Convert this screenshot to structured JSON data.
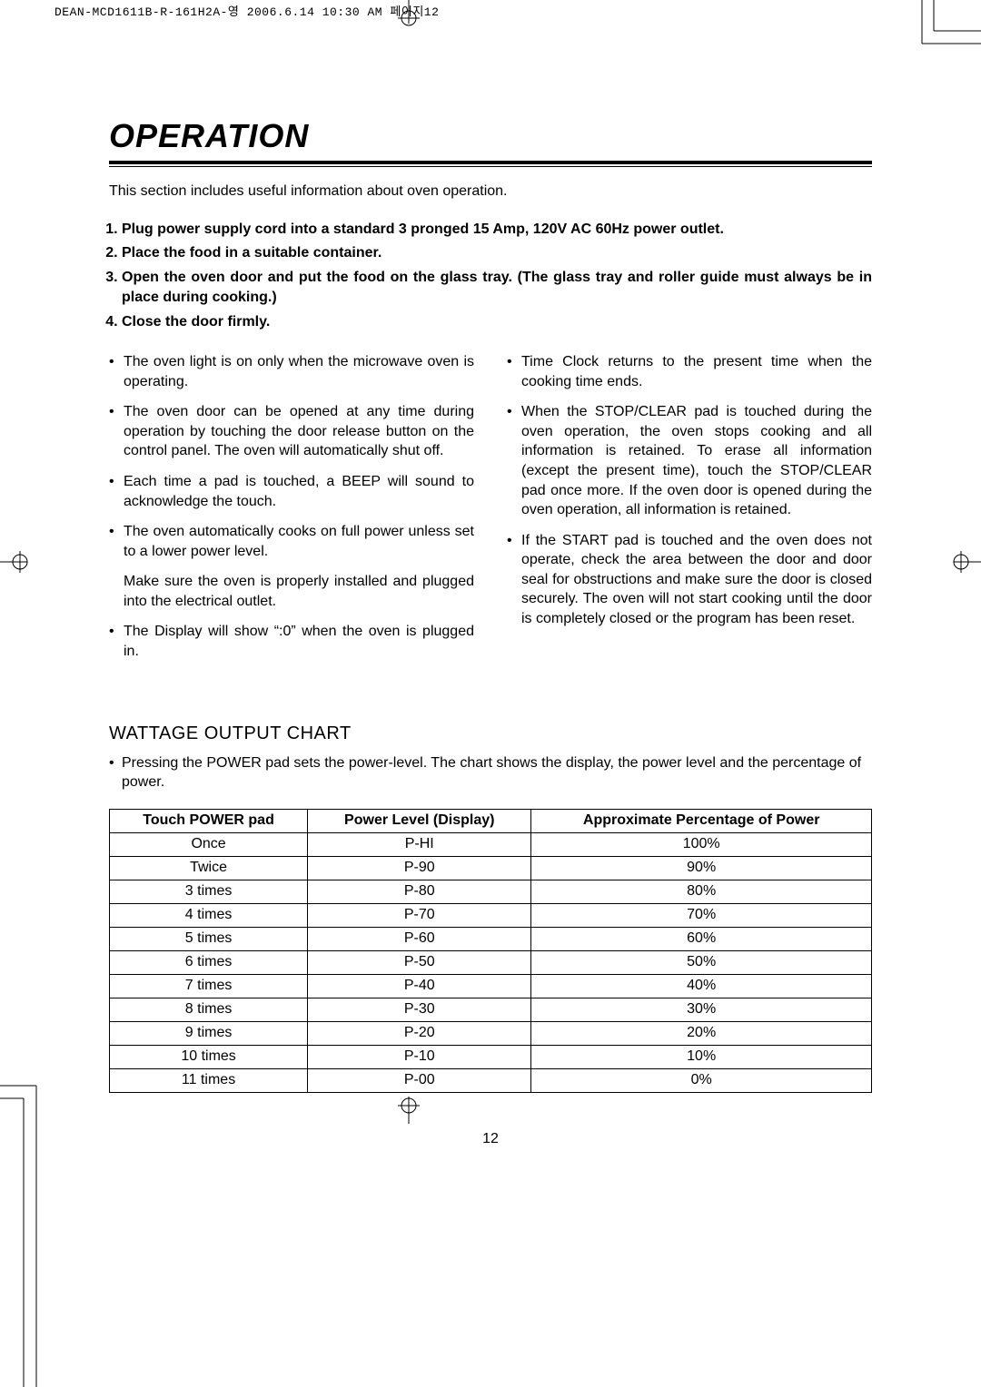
{
  "header": {
    "doc_id": "DEAN-MCD1611B-R-161H2A-영  2006.6.14 10:30 AM  페이지12"
  },
  "title": "OPERATION",
  "intro": "This section includes useful information about oven operation.",
  "steps": [
    "Plug power supply cord into a standard 3 pronged 15 Amp, 120V AC 60Hz power outlet.",
    "Place the food in a suitable container.",
    "Open the oven door and put the food on the glass tray. (The glass tray and roller guide must always be in place during cooking.)",
    "Close the door firmly."
  ],
  "left_bullets": [
    "The oven light is on only when the microwave oven is operating.",
    "The oven door can be opened at any time during operation by touching the door release button on the control panel. The oven will automatically shut off.",
    "Each time a pad is touched, a BEEP will sound to acknowledge the touch.",
    "The oven automatically cooks on full power unless set to a lower power level."
  ],
  "left_follow": "Make sure the oven is properly installed and plugged into the electrical outlet.",
  "left_tail_bullet": "The Display will show “:0” when the oven is plugged in.",
  "right_bullets": [
    "Time Clock returns to the present time when the cooking time ends.",
    "When the STOP/CLEAR pad is touched during the oven operation, the oven stops cooking and all information is retained. To erase all information (except the present time), touch the STOP/CLEAR pad once more. If the oven door is opened during the oven operation, all information is retained.",
    "If the START pad is touched and the oven does not operate, check the area between the door and door seal for obstructions and make sure the door is closed securely. The oven will not start cooking until the door is completely closed or the program has been reset."
  ],
  "chart": {
    "heading": "WATTAGE OUTPUT CHART",
    "intro": "Pressing the POWER pad sets the power-level. The chart shows the display, the power level and the percentage of power.",
    "columns": [
      "Touch POWER pad",
      "Power Level (Display)",
      "Approximate Percentage of Power"
    ],
    "rows": [
      [
        "Once",
        "P-HI",
        "100%"
      ],
      [
        "Twice",
        "P-90",
        "90%"
      ],
      [
        "3 times",
        "P-80",
        "80%"
      ],
      [
        "4 times",
        "P-70",
        "70%"
      ],
      [
        "5 times",
        "P-60",
        "60%"
      ],
      [
        "6 times",
        "P-50",
        "50%"
      ],
      [
        "7 times",
        "P-40",
        "40%"
      ],
      [
        "8 times",
        "P-30",
        "30%"
      ],
      [
        "9 times",
        "P-20",
        "20%"
      ],
      [
        "10 times",
        "P-10",
        "10%"
      ],
      [
        "11 times",
        "P-00",
        "0%"
      ]
    ]
  },
  "page_number": "12"
}
